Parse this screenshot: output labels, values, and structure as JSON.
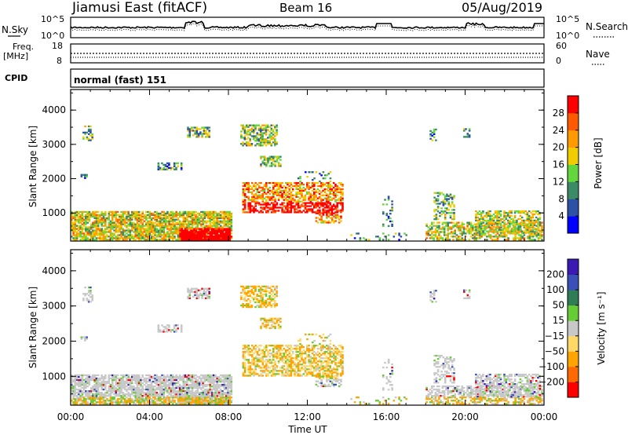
{
  "header": {
    "station": "Jiamusi East (fitACF)",
    "beam": "Beam 16",
    "date": "05/Aug/2019"
  },
  "top_panel": {
    "left_label": "N.Sky",
    "right_label": "N.Search",
    "left_ticks": [
      "10^5",
      "10^0"
    ],
    "right_ticks": [
      "10^5",
      "10^0"
    ]
  },
  "freq_panel": {
    "left_label": "Freq.",
    "left_unit": "[MHz]",
    "left_ticks": [
      "18",
      "8"
    ],
    "right_label": "Nave",
    "right_ticks": [
      "60",
      "0"
    ]
  },
  "cpid_panel": {
    "label": "CPID",
    "text": "normal (fast) 151"
  },
  "colors": {
    "power": [
      "#0000ff",
      "#2e51a8",
      "#3b8c66",
      "#63d63d",
      "#f1cc00",
      "#ff9b00",
      "#ff5a00",
      "#ff0000"
    ],
    "velocity": [
      "#ff0000",
      "#ff6a00",
      "#ffa400",
      "#ffd866",
      "#c8c8c8",
      "#66cc33",
      "#2e7d55",
      "#3950b8",
      "#3a1ab3"
    ]
  },
  "chart_data": [
    {
      "type": "heatmap",
      "quantity": "Power",
      "ylabel": "Slant Range [km]",
      "yticks": [
        "1000",
        "2000",
        "3000",
        "4000"
      ],
      "ylim": [
        180,
        4600
      ],
      "xticks": [
        "00:00",
        "04:00",
        "08:00",
        "12:00",
        "16:00",
        "20:00",
        "00:00"
      ],
      "colorbar_label": "Power [dB]",
      "colorbar_ticks": [
        "4",
        "8",
        "12",
        "16",
        "20",
        "24",
        "28"
      ],
      "colorbar_range": [
        0,
        32
      ]
    },
    {
      "type": "heatmap",
      "quantity": "Velocity",
      "ylabel": "Slant Range [km]",
      "yticks": [
        "1000",
        "2000",
        "3000",
        "4000"
      ],
      "ylim": [
        180,
        4600
      ],
      "xlabel": "Time UT",
      "xticks": [
        "00:00",
        "04:00",
        "08:00",
        "12:00",
        "16:00",
        "20:00",
        "00:00"
      ],
      "colorbar_label": "Velocity [m s⁻¹]",
      "colorbar_ticks": [
        "200",
        "100",
        "50",
        "15",
        "−15",
        "−50",
        "−100",
        "−200"
      ]
    }
  ]
}
